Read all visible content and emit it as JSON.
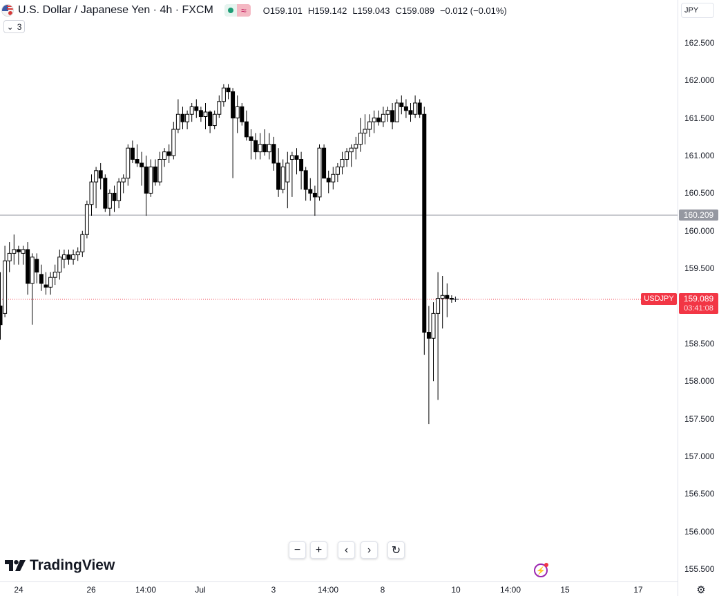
{
  "legend": {
    "title": "U.S. Dollar / Japanese Yen · 4h · FXCM",
    "open_label": "O",
    "open": "159.101",
    "high_label": "H",
    "high": "159.142",
    "low_label": "L",
    "low": "159.043",
    "close_label": "C",
    "close": "159.089",
    "change": "−0.012 (−0.01%)",
    "indicator_count": "3",
    "wave_glyph": "≈"
  },
  "currency": "JPY",
  "price_tags": {
    "line_price": "160.209",
    "symbol": "USDJPY",
    "last_price": "159.089",
    "countdown": "03:41:08"
  },
  "logo_text": "TradingView",
  "nav": {
    "zoom_out": "−",
    "zoom_in": "+",
    "scroll_left": "‹",
    "scroll_right": "›",
    "reset": "↻"
  },
  "icons": {
    "flash": "⚡",
    "gear": "⚙",
    "chevron": "⌄"
  },
  "colors": {
    "up": "#ffffff",
    "down": "#000000",
    "wick": "#000000",
    "last_price": "#f23645",
    "horizontal_line": "#9598a1"
  },
  "chart_data": {
    "type": "candlestick",
    "symbol": "USDJPY",
    "timeframe": "4h",
    "ylim": [
      155.35,
      162.7
    ],
    "price_ticks": [
      "162.500",
      "162.000",
      "161.500",
      "161.000",
      "160.500",
      "160.000",
      "159.500",
      "159.000",
      "158.500",
      "158.000",
      "157.500",
      "157.000",
      "156.500",
      "156.000",
      "155.500"
    ],
    "time_ticks": [
      "24",
      "26",
      "14:00",
      "Jul",
      "3",
      "14:00",
      "8",
      "10",
      "14:00",
      "15",
      "17"
    ],
    "horizontal_line": 160.209,
    "last_price": 159.089,
    "candles": [
      [
        159.0,
        159.45,
        158.55,
        158.75
      ],
      [
        158.9,
        159.8,
        158.85,
        159.6
      ],
      [
        159.6,
        159.85,
        159.45,
        159.7
      ],
      [
        159.7,
        159.95,
        159.55,
        159.75
      ],
      [
        159.75,
        159.8,
        159.55,
        159.72
      ],
      [
        159.7,
        159.8,
        159.55,
        159.75
      ],
      [
        159.75,
        159.85,
        159.15,
        159.3
      ],
      [
        159.3,
        159.7,
        158.75,
        159.65
      ],
      [
        159.62,
        159.7,
        159.3,
        159.45
      ],
      [
        159.42,
        159.55,
        159.2,
        159.3
      ],
      [
        159.28,
        159.45,
        159.15,
        159.25
      ],
      [
        159.25,
        159.45,
        159.15,
        159.38
      ],
      [
        159.38,
        159.55,
        159.28,
        159.45
      ],
      [
        159.45,
        159.75,
        159.35,
        159.65
      ],
      [
        159.62,
        159.75,
        159.5,
        159.68
      ],
      [
        159.68,
        159.75,
        159.55,
        159.62
      ],
      [
        159.62,
        159.75,
        159.55,
        159.68
      ],
      [
        159.68,
        159.78,
        159.6,
        159.72
      ],
      [
        159.72,
        160.0,
        159.65,
        159.95
      ],
      [
        159.95,
        160.4,
        159.9,
        160.35
      ],
      [
        160.35,
        160.75,
        160.2,
        160.65
      ],
      [
        160.65,
        160.85,
        160.3,
        160.8
      ],
      [
        160.8,
        160.9,
        160.55,
        160.7
      ],
      [
        160.7,
        160.75,
        160.25,
        160.3
      ],
      [
        160.3,
        160.55,
        160.2,
        160.5
      ],
      [
        160.5,
        160.6,
        160.25,
        160.4
      ],
      [
        160.4,
        160.7,
        160.3,
        160.65
      ],
      [
        160.65,
        160.75,
        160.5,
        160.7
      ],
      [
        160.7,
        161.15,
        160.6,
        161.1
      ],
      [
        161.1,
        161.2,
        160.9,
        160.95
      ],
      [
        160.95,
        161.15,
        160.85,
        160.9
      ],
      [
        160.9,
        161.05,
        160.6,
        160.85
      ],
      [
        160.85,
        161.0,
        160.2,
        160.5
      ],
      [
        160.5,
        160.95,
        160.45,
        160.85
      ],
      [
        160.85,
        160.95,
        160.6,
        160.65
      ],
      [
        160.65,
        161.05,
        160.6,
        160.95
      ],
      [
        160.95,
        161.1,
        160.85,
        161.05
      ],
      [
        161.05,
        161.15,
        160.9,
        161.0
      ],
      [
        161.0,
        161.45,
        160.95,
        161.35
      ],
      [
        161.35,
        161.75,
        161.3,
        161.55
      ],
      [
        161.55,
        161.65,
        161.35,
        161.45
      ],
      [
        161.45,
        161.6,
        161.35,
        161.55
      ],
      [
        161.55,
        161.7,
        161.45,
        161.65
      ],
      [
        161.65,
        161.75,
        161.5,
        161.6
      ],
      [
        161.6,
        161.65,
        161.45,
        161.52
      ],
      [
        161.52,
        161.7,
        161.35,
        161.58
      ],
      [
        161.58,
        161.6,
        161.3,
        161.4
      ],
      [
        161.4,
        161.6,
        161.35,
        161.55
      ],
      [
        161.55,
        161.8,
        161.5,
        161.72
      ],
      [
        161.72,
        161.95,
        161.65,
        161.9
      ],
      [
        161.9,
        161.95,
        161.75,
        161.85
      ],
      [
        161.85,
        161.9,
        160.7,
        161.5
      ],
      [
        161.5,
        161.8,
        161.3,
        161.65
      ],
      [
        161.65,
        161.7,
        161.4,
        161.45
      ],
      [
        161.45,
        161.6,
        161.2,
        161.25
      ],
      [
        161.25,
        161.35,
        160.95,
        161.2
      ],
      [
        161.2,
        161.3,
        160.95,
        161.05
      ],
      [
        161.05,
        161.3,
        160.95,
        161.15
      ],
      [
        161.15,
        161.35,
        161.0,
        161.05
      ],
      [
        161.05,
        161.3,
        160.95,
        161.15
      ],
      [
        161.15,
        161.25,
        160.8,
        160.9
      ],
      [
        160.9,
        161.1,
        160.45,
        160.55
      ],
      [
        160.55,
        160.95,
        160.5,
        160.85
      ],
      [
        160.65,
        161.05,
        160.3,
        160.9
      ],
      [
        160.95,
        161.05,
        160.45,
        161.0
      ],
      [
        161.0,
        161.1,
        160.75,
        160.95
      ],
      [
        160.95,
        161.05,
        160.55,
        160.8
      ],
      [
        160.8,
        160.85,
        160.4,
        160.55
      ],
      [
        160.55,
        160.7,
        160.4,
        160.5
      ],
      [
        160.5,
        160.6,
        160.2,
        160.45
      ],
      [
        160.45,
        161.15,
        160.4,
        161.1
      ],
      [
        161.1,
        161.15,
        160.7,
        160.7
      ],
      [
        160.7,
        160.8,
        160.5,
        160.65
      ],
      [
        160.65,
        160.85,
        160.55,
        160.75
      ],
      [
        160.75,
        160.9,
        160.65,
        160.85
      ],
      [
        160.85,
        161.05,
        160.75,
        160.95
      ],
      [
        160.95,
        161.1,
        160.85,
        161.05
      ],
      [
        161.05,
        161.15,
        160.85,
        161.1
      ],
      [
        161.1,
        161.25,
        160.95,
        161.15
      ],
      [
        161.15,
        161.5,
        161.05,
        161.3
      ],
      [
        161.3,
        161.55,
        161.15,
        161.35
      ],
      [
        161.35,
        161.55,
        161.25,
        161.45
      ],
      [
        161.45,
        161.6,
        161.3,
        161.5
      ],
      [
        161.5,
        161.6,
        161.4,
        161.45
      ],
      [
        161.45,
        161.65,
        161.38,
        161.55
      ],
      [
        161.55,
        161.65,
        161.45,
        161.6
      ],
      [
        161.6,
        161.7,
        161.35,
        161.45
      ],
      [
        161.45,
        161.75,
        161.45,
        161.7
      ],
      [
        161.7,
        161.8,
        161.55,
        161.65
      ],
      [
        161.65,
        161.75,
        161.5,
        161.6
      ],
      [
        161.6,
        161.7,
        161.45,
        161.55
      ],
      [
        161.55,
        161.8,
        161.5,
        161.7
      ],
      [
        161.7,
        161.75,
        161.5,
        161.55
      ],
      [
        161.55,
        161.65,
        158.35,
        158.65
      ],
      [
        158.65,
        159.0,
        157.43,
        158.57
      ],
      [
        158.57,
        159.05,
        158.0,
        158.9
      ],
      [
        158.9,
        159.45,
        157.75,
        159.1
      ],
      [
        159.1,
        159.4,
        158.7,
        159.14
      ],
      [
        159.14,
        159.3,
        158.85,
        159.1
      ],
      [
        159.101,
        159.142,
        159.043,
        159.089
      ]
    ]
  }
}
